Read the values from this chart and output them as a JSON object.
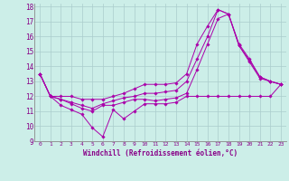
{
  "bg_color": "#cceee8",
  "grid_color": "#aacccc",
  "line_color": "#aa00aa",
  "xlim": [
    -0.5,
    23.5
  ],
  "ylim": [
    9,
    18.2
  ],
  "xticks": [
    0,
    1,
    2,
    3,
    4,
    5,
    6,
    7,
    8,
    9,
    10,
    11,
    12,
    13,
    14,
    15,
    16,
    17,
    18,
    19,
    20,
    21,
    22,
    23
  ],
  "yticks": [
    9,
    10,
    11,
    12,
    13,
    14,
    15,
    16,
    17,
    18
  ],
  "xlabel": "Windchill (Refroidissement éolien,°C)",
  "series": [
    [
      13.5,
      12.0,
      11.4,
      11.1,
      10.8,
      9.9,
      9.3,
      11.1,
      10.5,
      11.0,
      11.5,
      11.5,
      11.5,
      11.6,
      12.0,
      12.0,
      12.0,
      12.0,
      12.0,
      12.0,
      12.0,
      12.0,
      12.0,
      12.8
    ],
    [
      13.5,
      12.0,
      11.8,
      11.5,
      11.2,
      11.0,
      11.4,
      11.4,
      11.6,
      11.8,
      11.8,
      11.7,
      11.8,
      11.9,
      12.2,
      13.8,
      15.5,
      17.2,
      17.5,
      15.4,
      14.3,
      13.2,
      13.0,
      12.8
    ],
    [
      13.5,
      12.0,
      11.8,
      11.6,
      11.4,
      11.2,
      11.5,
      11.7,
      11.9,
      12.0,
      12.2,
      12.2,
      12.3,
      12.4,
      13.0,
      14.5,
      16.0,
      17.8,
      17.5,
      15.4,
      14.4,
      13.3,
      13.0,
      12.8
    ],
    [
      13.5,
      12.0,
      12.0,
      12.0,
      11.8,
      11.8,
      11.8,
      12.0,
      12.2,
      12.5,
      12.8,
      12.8,
      12.8,
      12.9,
      13.5,
      15.5,
      16.7,
      17.8,
      17.5,
      15.5,
      14.5,
      13.3,
      13.0,
      12.8
    ]
  ]
}
